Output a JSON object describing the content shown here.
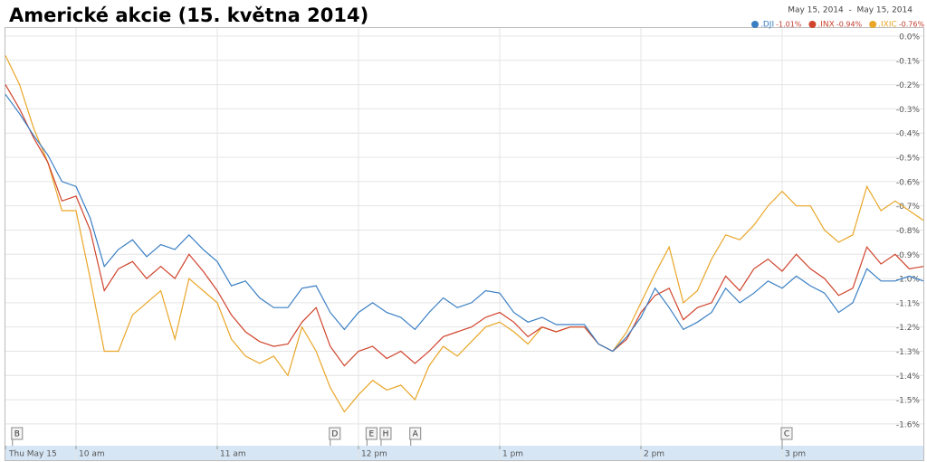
{
  "chart_data": {
    "type": "line",
    "title": "Americké akcie (15. května 2014)",
    "date_range": "May 15, 2014  -  May 15, 2014",
    "x": [
      9.5,
      9.6,
      9.7,
      9.8,
      9.9,
      10.0,
      10.1,
      10.2,
      10.3,
      10.4,
      10.5,
      10.6,
      10.7,
      10.8,
      10.9,
      11.0,
      11.1,
      11.2,
      11.3,
      11.4,
      11.5,
      11.6,
      11.7,
      11.8,
      11.9,
      12.0,
      12.1,
      12.2,
      12.3,
      12.4,
      12.5,
      12.6,
      12.7,
      12.8,
      12.9,
      13.0,
      13.1,
      13.2,
      13.3,
      13.4,
      13.5,
      13.6,
      13.7,
      13.8,
      13.9,
      14.0,
      14.1,
      14.2,
      14.3,
      14.4,
      14.5,
      14.6,
      14.7,
      14.8,
      14.9,
      15.0,
      15.1,
      15.2,
      15.3,
      15.4,
      15.5,
      15.6,
      15.7,
      15.8,
      15.9,
      16.0
    ],
    "series": [
      {
        "name": ".DJI",
        "change": "-1.01%",
        "color": "#3a7fc4",
        "values": [
          -0.24,
          -0.32,
          -0.41,
          -0.49,
          -0.6,
          -0.62,
          -0.75,
          -0.95,
          -0.88,
          -0.84,
          -0.91,
          -0.86,
          -0.88,
          -0.82,
          -0.88,
          -0.93,
          -1.03,
          -1.01,
          -1.08,
          -1.12,
          -1.12,
          -1.04,
          -1.03,
          -1.14,
          -1.21,
          -1.14,
          -1.1,
          -1.14,
          -1.16,
          -1.21,
          -1.14,
          -1.08,
          -1.12,
          -1.1,
          -1.05,
          -1.06,
          -1.14,
          -1.18,
          -1.16,
          -1.19,
          -1.19,
          -1.19,
          -1.27,
          -1.3,
          -1.24,
          -1.16,
          -1.04,
          -1.12,
          -1.21,
          -1.18,
          -1.14,
          -1.04,
          -1.1,
          -1.06,
          -1.01,
          -1.04,
          -0.99,
          -1.03,
          -1.06,
          -1.14,
          -1.1,
          -0.96,
          -1.01,
          -1.01,
          -0.99,
          -1.01
        ]
      },
      {
        "name": ".INX",
        "change": "-0.94%",
        "color": "#d0432c",
        "values": [
          -0.2,
          -0.3,
          -0.42,
          -0.52,
          -0.68,
          -0.66,
          -0.8,
          -1.05,
          -0.96,
          -0.93,
          -1.0,
          -0.95,
          -1.0,
          -0.9,
          -0.97,
          -1.05,
          -1.15,
          -1.22,
          -1.26,
          -1.28,
          -1.27,
          -1.18,
          -1.12,
          -1.28,
          -1.36,
          -1.3,
          -1.28,
          -1.33,
          -1.3,
          -1.35,
          -1.3,
          -1.24,
          -1.22,
          -1.2,
          -1.16,
          -1.14,
          -1.18,
          -1.24,
          -1.2,
          -1.22,
          -1.2,
          -1.2,
          -1.27,
          -1.3,
          -1.25,
          -1.14,
          -1.07,
          -1.04,
          -1.17,
          -1.12,
          -1.1,
          -0.99,
          -1.05,
          -0.96,
          -0.92,
          -0.97,
          -0.9,
          -0.96,
          -1.0,
          -1.07,
          -1.04,
          -0.87,
          -0.94,
          -0.9,
          -0.96,
          -0.95
        ]
      },
      {
        "name": ".IXIC",
        "change": "-0.76%",
        "color": "#e9a628",
        "values": [
          -0.08,
          -0.2,
          -0.38,
          -0.52,
          -0.72,
          -0.72,
          -1.0,
          -1.3,
          -1.3,
          -1.15,
          -1.1,
          -1.05,
          -1.25,
          -1.0,
          -1.05,
          -1.1,
          -1.25,
          -1.32,
          -1.35,
          -1.32,
          -1.4,
          -1.2,
          -1.3,
          -1.45,
          -1.55,
          -1.48,
          -1.42,
          -1.46,
          -1.44,
          -1.5,
          -1.36,
          -1.28,
          -1.32,
          -1.26,
          -1.2,
          -1.18,
          -1.22,
          -1.27,
          -1.2,
          -1.22,
          -1.2,
          -1.2,
          -1.27,
          -1.3,
          -1.22,
          -1.1,
          -0.98,
          -0.87,
          -1.1,
          -1.05,
          -0.92,
          -0.82,
          -0.84,
          -0.78,
          -0.7,
          -0.64,
          -0.7,
          -0.7,
          -0.8,
          -0.85,
          -0.82,
          -0.62,
          -0.72,
          -0.68,
          -0.72,
          -0.76
        ]
      }
    ],
    "xlim": [
      9.5,
      16
    ],
    "xticks": [
      {
        "value": 9.5,
        "label": "Thu May 15"
      },
      {
        "value": 10,
        "label": "10 am"
      },
      {
        "value": 11,
        "label": "11 am"
      },
      {
        "value": 12,
        "label": "12 pm"
      },
      {
        "value": 13,
        "label": "1 pm"
      },
      {
        "value": 14,
        "label": "2 pm"
      },
      {
        "value": 15,
        "label": "3 pm"
      }
    ],
    "ylim": [
      -1.66,
      0
    ],
    "yticks": [
      {
        "value": 0,
        "label": "0.0%"
      },
      {
        "value": -0.1,
        "label": "-0.1%"
      },
      {
        "value": -0.2,
        "label": "-0.2%"
      },
      {
        "value": -0.3,
        "label": "-0.3%"
      },
      {
        "value": -0.4,
        "label": "-0.4%"
      },
      {
        "value": -0.5,
        "label": "-0.5%"
      },
      {
        "value": -0.6,
        "label": "-0.6%"
      },
      {
        "value": -0.7,
        "label": "-0.7%"
      },
      {
        "value": -0.8,
        "label": "-0.8%"
      },
      {
        "value": -0.9,
        "label": "-0.9%"
      },
      {
        "value": -1.0,
        "label": "-1.0%"
      },
      {
        "value": -1.1,
        "label": "-1.1%"
      },
      {
        "value": -1.2,
        "label": "-1.2%"
      },
      {
        "value": -1.3,
        "label": "-1.3%"
      },
      {
        "value": -1.4,
        "label": "-1.4%"
      },
      {
        "value": -1.5,
        "label": "-1.5%"
      },
      {
        "value": -1.6,
        "label": "-1.6%"
      }
    ],
    "events": [
      {
        "label": "B",
        "x": 9.55
      },
      {
        "label": "D",
        "x": 11.8
      },
      {
        "label": "E",
        "x": 12.06
      },
      {
        "label": "H",
        "x": 12.16
      },
      {
        "label": "A",
        "x": 12.37
      },
      {
        "label": "C",
        "x": 15.0
      }
    ],
    "grid": true
  }
}
